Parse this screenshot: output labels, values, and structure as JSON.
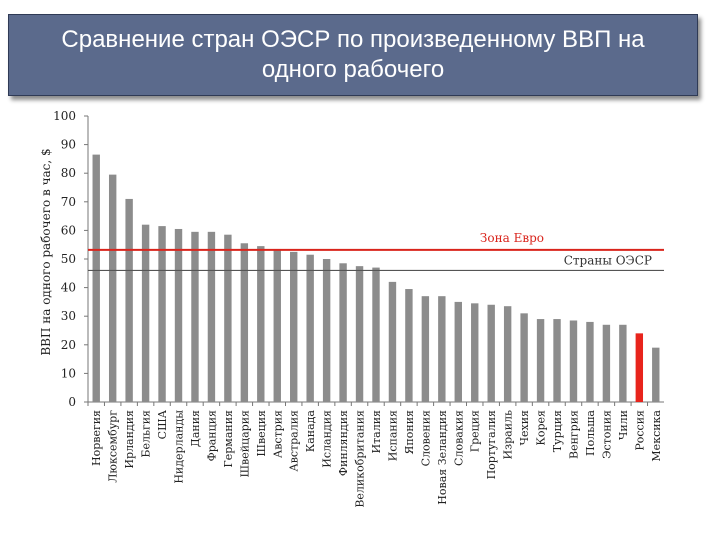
{
  "slide": {
    "title": "Сравнение стран ОЭСР по произведенному ВВП на одного рабочего"
  },
  "chart_data": {
    "type": "bar",
    "ylabel": "ВВП на одного рабочего в час, $",
    "xlabel": "",
    "ylim": [
      0,
      100
    ],
    "yticks": [
      0,
      10,
      20,
      30,
      40,
      50,
      60,
      70,
      80,
      90,
      100
    ],
    "grid": false,
    "categories": [
      "Норвегия",
      "Люксембург",
      "Ирландия",
      "Бельгия",
      "США",
      "Нидерланды",
      "Дания",
      "Франция",
      "Германия",
      "Швейцария",
      "Швеция",
      "Австрия",
      "Австралия",
      "Канада",
      "Исландия",
      "Финляндия",
      "Великобритания",
      "Италия",
      "Испания",
      "Япония",
      "Словения",
      "Новая Зеландия",
      "Словакия",
      "Греция",
      "Португалия",
      "Израиль",
      "Чехия",
      "Корея",
      "Турция",
      "Венгрия",
      "Польша",
      "Эстония",
      "Чили",
      "Россия",
      "Мексика"
    ],
    "values": [
      86.5,
      79.5,
      71,
      62,
      61.5,
      60.5,
      59.5,
      59.5,
      58.5,
      55.5,
      54.5,
      53.5,
      52.5,
      51.5,
      50,
      48.5,
      47.5,
      47,
      42,
      39.5,
      37,
      37,
      35,
      34.5,
      34,
      33.5,
      31,
      29,
      29,
      28.5,
      28,
      27,
      27,
      24,
      19
    ],
    "colors": {
      "bar": "#8c8c8c",
      "highlight": "#e8241c",
      "euro_line": "#d9241c",
      "oecd_line": "#555555"
    },
    "highlight_index": 33,
    "reference_lines": [
      {
        "label": "Зона Евро",
        "value": 53.2
      },
      {
        "label": "Страны ОЭСР",
        "value": 46
      }
    ]
  }
}
